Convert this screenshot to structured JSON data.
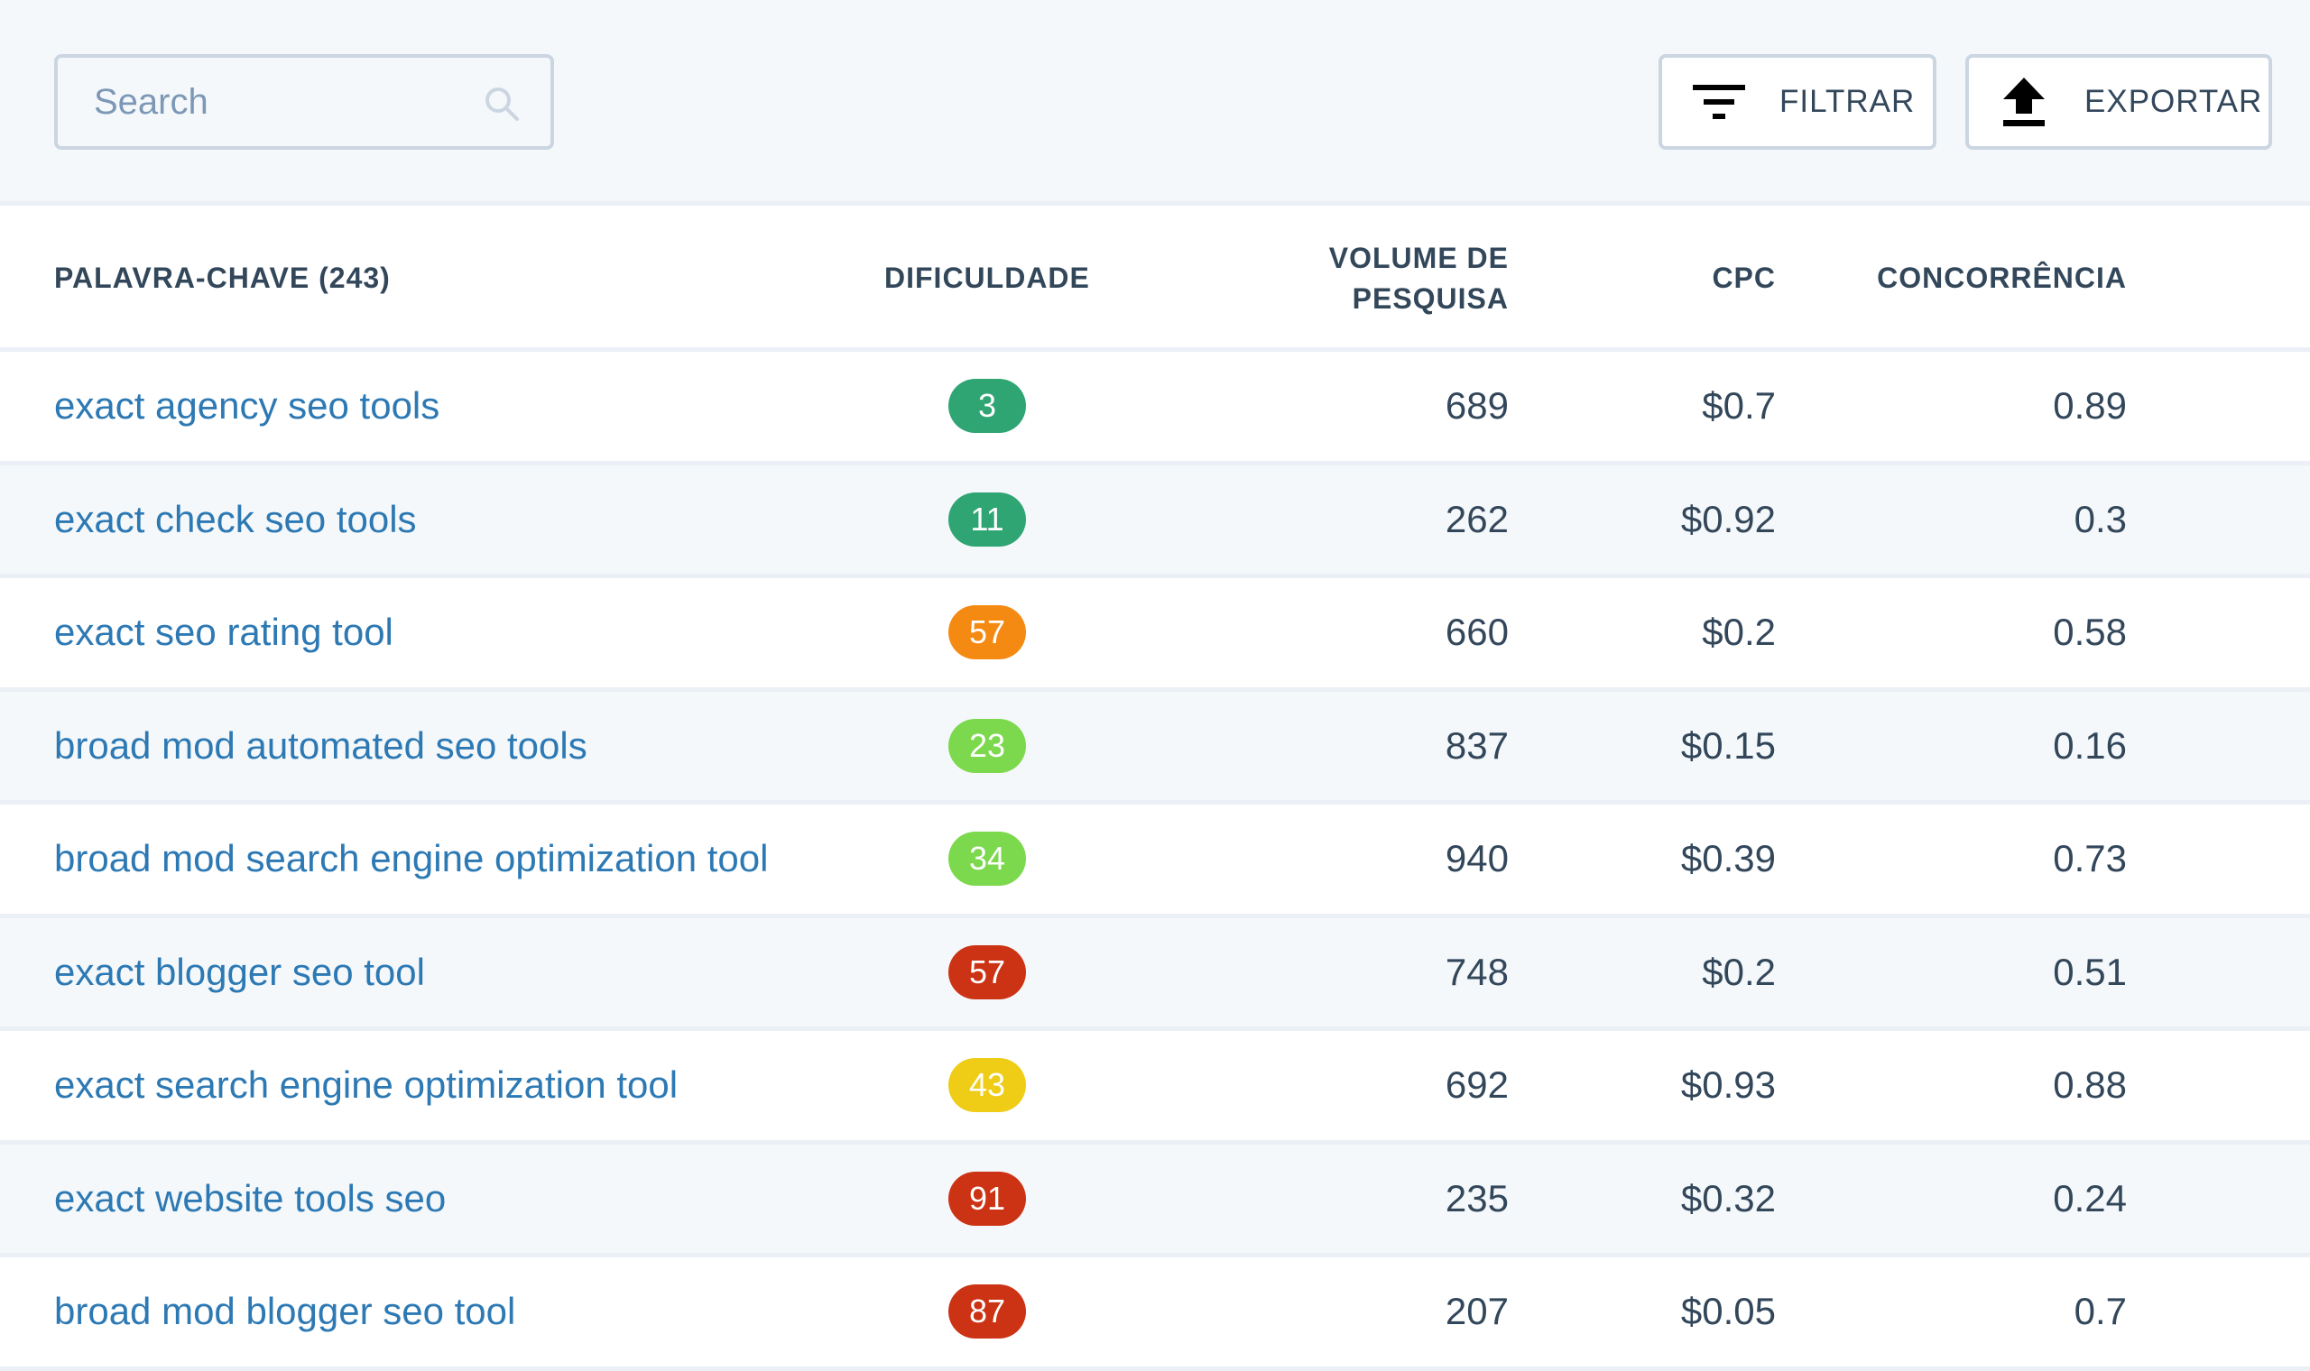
{
  "search": {
    "placeholder": "Search",
    "icon": "search-icon"
  },
  "toolbar": {
    "filter_label": "FILTRAR",
    "filter_icon": "filter-icon",
    "export_label": "EXPORTAR",
    "export_icon": "upload-icon"
  },
  "table": {
    "headers": {
      "keyword": "PALAVRA-CHAVE (243)",
      "difficulty": "DIFICULDADE",
      "volume_line1": "VOLUME DE",
      "volume_line2": "PESQUISA",
      "cpc": "CPC",
      "competition": "CONCORRÊNCIA"
    },
    "rows": [
      {
        "keyword": "exact agency seo tools",
        "difficulty": "3",
        "difficulty_color": "#2fa574",
        "volume": "689",
        "cpc": "$0.7",
        "competition": "0.89"
      },
      {
        "keyword": "exact check seo tools",
        "difficulty": "11",
        "difficulty_color": "#2fa574",
        "volume": "262",
        "cpc": "$0.92",
        "competition": "0.3"
      },
      {
        "keyword": "exact seo rating tool",
        "difficulty": "57",
        "difficulty_color": "#f58a12",
        "volume": "660",
        "cpc": "$0.2",
        "competition": "0.58"
      },
      {
        "keyword": "broad mod automated seo tools",
        "difficulty": "23",
        "difficulty_color": "#7cd84d",
        "volume": "837",
        "cpc": "$0.15",
        "competition": "0.16"
      },
      {
        "keyword": "broad mod search engine optimization tool",
        "difficulty": "34",
        "difficulty_color": "#7cd84d",
        "volume": "940",
        "cpc": "$0.39",
        "competition": "0.73"
      },
      {
        "keyword": "exact blogger seo tool",
        "difficulty": "57",
        "difficulty_color": "#cc3314",
        "volume": "748",
        "cpc": "$0.2",
        "competition": "0.51"
      },
      {
        "keyword": "exact search engine optimization tool",
        "difficulty": "43",
        "difficulty_color": "#efcc15",
        "volume": "692",
        "cpc": "$0.93",
        "competition": "0.88"
      },
      {
        "keyword": "exact website tools seo",
        "difficulty": "91",
        "difficulty_color": "#cc3314",
        "volume": "235",
        "cpc": "$0.32",
        "competition": "0.24"
      },
      {
        "keyword": "broad mod blogger seo tool",
        "difficulty": "87",
        "difficulty_color": "#cc3314",
        "volume": "207",
        "cpc": "$0.05",
        "competition": "0.7"
      }
    ]
  }
}
